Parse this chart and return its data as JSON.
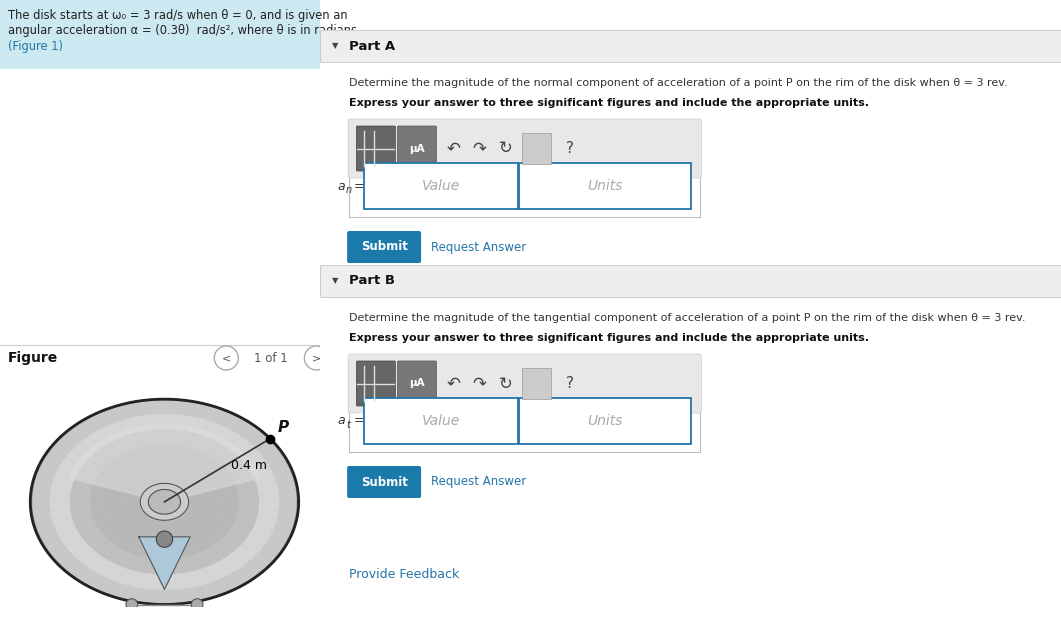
{
  "left_panel_bg": "#cce8f0",
  "right_panel_bg": "#ffffff",
  "divider_color": "#bbbbbb",
  "text_color": "#222222",
  "link_color": "#2475a8",
  "part_header_bg": "#eeeeee",
  "part_header_border": "#cccccc",
  "toolbar_bg": "#e8e8e8",
  "toolbar_border": "#cccccc",
  "btn1_bg": "#666666",
  "btn2_bg": "#777777",
  "input_border": "#2475a8",
  "submit_bg": "#1a7aaa",
  "submit_color": "#ffffff",
  "desc_color": "#333333",
  "bold_color": "#111111",
  "placeholder_color": "#aaaaaa",
  "nav_circle_color": "#ffffff",
  "nav_circle_border": "#aaaaaa",
  "figure_bold_color": "#111111",
  "left_text_line1": "The disk starts at ω₀ = 3 rad/s when θ = 0, and is given an",
  "left_text_line2": "angular acceleration α = (0.3θ)  rad/s², where θ is in radians.",
  "left_text_line3": "(Figure 1)",
  "part_a_header": "Part A",
  "part_a_desc": "Determine the magnitude of the normal component of acceleration of a point P on the rim of the disk when θ = 3 rev.",
  "part_a_bold": "Express your answer to three significant figures and include the appropriate units.",
  "part_a_label": "a",
  "part_a_subscript": "n",
  "part_b_header": "Part B",
  "part_b_desc": "Determine the magnitude of the tangential component of acceleration of a point P on the rim of the disk when θ = 3 rev.",
  "part_b_bold": "Express your answer to three significant figures and include the appropriate units.",
  "part_b_label": "a",
  "part_b_subscript": "t",
  "value_text": "Value",
  "units_text": "Units",
  "submit_text": "Submit",
  "request_text": "Request Answer",
  "figure_label": "Figure",
  "nav_text": "1 of 1",
  "disk_label": "0.4 m",
  "point_label": "P",
  "provide_feedback": "Provide Feedback",
  "bottom_bar_color": "#888888"
}
